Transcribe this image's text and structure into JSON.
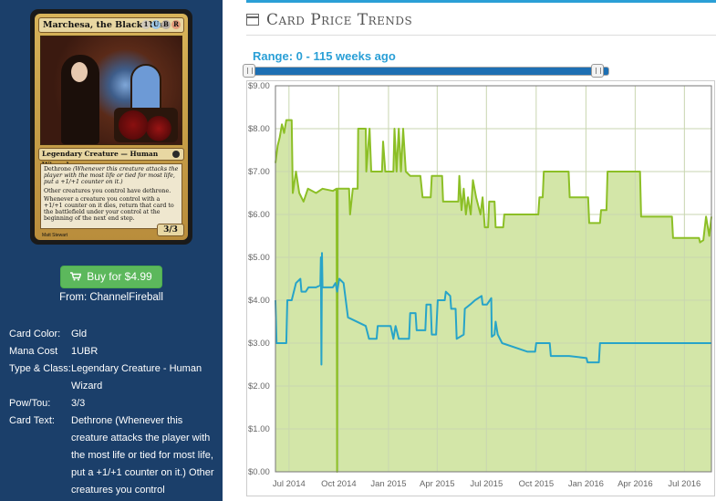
{
  "card": {
    "name": "Marchesa, the Black Rose",
    "mana_symbols": [
      "1",
      "U",
      "B",
      "R"
    ],
    "type_line": "Legendary Creature — Human Wizard",
    "rules_text_1": "Dethrone",
    "rules_text_1_reminder": "(Whenever this creature attacks the player with the most life or tied for most life, put a +1/+1 counter on it.)",
    "rules_text_2": "Other creatures you control have dethrone.",
    "rules_text_3": "Whenever a creature you control with a +1/+1 counter on it dies, return that card to the battlefield under your control at the beginning of the next end step.",
    "pt": "3/3",
    "artist": "Matt Stewart"
  },
  "buy": {
    "label": "Buy for $4.99",
    "from": "From: ChannelFireball"
  },
  "attributes": [
    {
      "key": "Card Color:",
      "value": "Gld"
    },
    {
      "key": "Mana Cost",
      "value": "1UBR"
    },
    {
      "key": "Type & Class:",
      "value": "Legendary Creature - Human Wizard"
    },
    {
      "key": "Pow/Tou:",
      "value": "3/3"
    },
    {
      "key": "Card Text:",
      "value": "Dethrone (Whenever this creature attacks the player with the most life or tied for most life, put a +1/+1 counter on it.) Other creatures you control"
    }
  ],
  "price_panel": {
    "title": "Card Price Trends",
    "range_label": "Range: 0 - 115 weeks ago"
  },
  "colors": {
    "panel_bg": "#1b3f6a",
    "accent": "#2a9fd6",
    "buy_green": "#5cb85c",
    "series_green": "#8cbf26",
    "fill_green": "#d3e6a8",
    "series_blue": "#27a4c8"
  },
  "chart_data": {
    "type": "line",
    "title": "",
    "xlabel": "",
    "ylabel": "",
    "ylim": [
      0,
      9
    ],
    "y_ticks": [
      "$0.00",
      "$1.00",
      "$2.00",
      "$3.00",
      "$4.00",
      "$5.00",
      "$6.00",
      "$7.00",
      "$8.00",
      "$9.00"
    ],
    "x_ticks": [
      {
        "date": "2014-07-01",
        "label": "Jul 2014"
      },
      {
        "date": "2014-10-01",
        "label": "Oct 2014"
      },
      {
        "date": "2015-01-01",
        "label": "Jan 2015"
      },
      {
        "date": "2015-04-01",
        "label": "Apr 2015"
      },
      {
        "date": "2015-07-01",
        "label": "Jul 2015"
      },
      {
        "date": "2015-10-01",
        "label": "Oct 2015"
      },
      {
        "date": "2016-01-01",
        "label": "Jan 2016"
      },
      {
        "date": "2016-04-01",
        "label": "Apr 2016"
      },
      {
        "date": "2016-07-01",
        "label": "Jul 2016"
      }
    ],
    "x_range": [
      "2014-06-06",
      "2016-08-20"
    ],
    "grid": true,
    "series": [
      {
        "name": "",
        "color": "#8cbf26",
        "fill": true,
        "points": [
          [
            "2014-06-06",
            7.2
          ],
          [
            "2014-06-10",
            7.6
          ],
          [
            "2014-06-14",
            7.8
          ],
          [
            "2014-06-18",
            8.1
          ],
          [
            "2014-06-22",
            7.9
          ],
          [
            "2014-06-26",
            8.2
          ],
          [
            "2014-07-06",
            8.2
          ],
          [
            "2014-07-08",
            6.5
          ],
          [
            "2014-07-14",
            7.0
          ],
          [
            "2014-07-20",
            6.5
          ],
          [
            "2014-07-28",
            6.3
          ],
          [
            "2014-08-05",
            6.6
          ],
          [
            "2014-08-20",
            6.5
          ],
          [
            "2014-09-01",
            6.6
          ],
          [
            "2014-09-20",
            6.55
          ],
          [
            "2014-09-27",
            6.6
          ],
          [
            "2014-09-28",
            0.0
          ],
          [
            "2014-09-29",
            6.6
          ],
          [
            "2014-10-20",
            6.6
          ],
          [
            "2014-10-22",
            6.0
          ],
          [
            "2014-10-27",
            6.6
          ],
          [
            "2014-11-05",
            6.6
          ],
          [
            "2014-11-06",
            8.0
          ],
          [
            "2014-11-20",
            8.0
          ],
          [
            "2014-11-21",
            7.0
          ],
          [
            "2014-11-27",
            8.0
          ],
          [
            "2014-11-30",
            7.0
          ],
          [
            "2014-12-20",
            7.0
          ],
          [
            "2014-12-22",
            7.7
          ],
          [
            "2014-12-26",
            7.0
          ],
          [
            "2015-01-10",
            7.0
          ],
          [
            "2015-01-12",
            8.0
          ],
          [
            "2015-01-16",
            7.0
          ],
          [
            "2015-01-20",
            8.0
          ],
          [
            "2015-01-24",
            7.0
          ],
          [
            "2015-01-28",
            8.0
          ],
          [
            "2015-02-02",
            7.0
          ],
          [
            "2015-02-10",
            6.9
          ],
          [
            "2015-03-01",
            6.9
          ],
          [
            "2015-03-05",
            6.4
          ],
          [
            "2015-03-20",
            6.4
          ],
          [
            "2015-03-22",
            6.9
          ],
          [
            "2015-04-10",
            6.9
          ],
          [
            "2015-04-12",
            6.3
          ],
          [
            "2015-05-10",
            6.3
          ],
          [
            "2015-05-12",
            6.9
          ],
          [
            "2015-05-16",
            6.1
          ],
          [
            "2015-05-20",
            6.6
          ],
          [
            "2015-05-24",
            6.0
          ],
          [
            "2015-05-28",
            6.4
          ],
          [
            "2015-06-02",
            6.0
          ],
          [
            "2015-06-06",
            6.8
          ],
          [
            "2015-06-12",
            6.4
          ],
          [
            "2015-06-20",
            6.0
          ],
          [
            "2015-06-24",
            6.4
          ],
          [
            "2015-06-28",
            5.7
          ],
          [
            "2015-07-04",
            5.7
          ],
          [
            "2015-07-06",
            6.3
          ],
          [
            "2015-07-16",
            6.3
          ],
          [
            "2015-07-18",
            5.7
          ],
          [
            "2015-08-01",
            5.7
          ],
          [
            "2015-08-03",
            6.0
          ],
          [
            "2015-10-05",
            6.0
          ],
          [
            "2015-10-07",
            6.4
          ],
          [
            "2015-10-13",
            6.4
          ],
          [
            "2015-10-15",
            7.0
          ],
          [
            "2015-11-30",
            7.0
          ],
          [
            "2015-12-02",
            6.4
          ],
          [
            "2016-01-05",
            6.4
          ],
          [
            "2016-01-07",
            5.8
          ],
          [
            "2016-01-27",
            5.8
          ],
          [
            "2016-01-29",
            6.1
          ],
          [
            "2016-02-08",
            6.1
          ],
          [
            "2016-02-10",
            7.0
          ],
          [
            "2016-04-10",
            7.0
          ],
          [
            "2016-04-12",
            5.95
          ],
          [
            "2016-06-08",
            5.95
          ],
          [
            "2016-06-10",
            5.45
          ],
          [
            "2016-07-28",
            5.45
          ],
          [
            "2016-07-30",
            5.35
          ],
          [
            "2016-08-05",
            5.4
          ],
          [
            "2016-08-10",
            5.95
          ],
          [
            "2016-08-16",
            5.5
          ],
          [
            "2016-08-20",
            5.95
          ]
        ]
      },
      {
        "name": "",
        "color": "#27a4c8",
        "fill": false,
        "points": [
          [
            "2014-06-06",
            4.0
          ],
          [
            "2014-06-08",
            3.0
          ],
          [
            "2014-06-26",
            3.0
          ],
          [
            "2014-06-28",
            4.0
          ],
          [
            "2014-07-06",
            4.0
          ],
          [
            "2014-07-14",
            4.4
          ],
          [
            "2014-07-22",
            4.5
          ],
          [
            "2014-07-24",
            4.2
          ],
          [
            "2014-08-01",
            4.2
          ],
          [
            "2014-08-06",
            4.3
          ],
          [
            "2014-08-20",
            4.3
          ],
          [
            "2014-08-28",
            4.35
          ],
          [
            "2014-08-29",
            5.0
          ],
          [
            "2014-08-30",
            2.5
          ],
          [
            "2014-08-31",
            5.1
          ],
          [
            "2014-09-01",
            4.3
          ],
          [
            "2014-09-20",
            4.3
          ],
          [
            "2014-09-25",
            4.4
          ],
          [
            "2014-09-28",
            4.2
          ],
          [
            "2014-10-02",
            4.5
          ],
          [
            "2014-10-10",
            4.4
          ],
          [
            "2014-10-14",
            4.0
          ],
          [
            "2014-10-18",
            3.6
          ],
          [
            "2014-11-20",
            3.4
          ],
          [
            "2014-11-26",
            3.1
          ],
          [
            "2014-12-10",
            3.1
          ],
          [
            "2014-12-12",
            3.4
          ],
          [
            "2015-01-05",
            3.4
          ],
          [
            "2015-01-10",
            3.1
          ],
          [
            "2015-01-14",
            3.4
          ],
          [
            "2015-01-20",
            3.1
          ],
          [
            "2015-02-08",
            3.1
          ],
          [
            "2015-02-10",
            3.7
          ],
          [
            "2015-02-20",
            3.7
          ],
          [
            "2015-02-22",
            3.3
          ],
          [
            "2015-03-10",
            3.3
          ],
          [
            "2015-03-12",
            3.9
          ],
          [
            "2015-03-20",
            3.9
          ],
          [
            "2015-03-22",
            3.2
          ],
          [
            "2015-03-30",
            3.2
          ],
          [
            "2015-04-02",
            4.0
          ],
          [
            "2015-04-15",
            4.0
          ],
          [
            "2015-04-17",
            4.2
          ],
          [
            "2015-04-25",
            4.1
          ],
          [
            "2015-04-27",
            3.8
          ],
          [
            "2015-05-05",
            3.8
          ],
          [
            "2015-05-07",
            3.1
          ],
          [
            "2015-05-20",
            3.2
          ],
          [
            "2015-05-22",
            3.8
          ],
          [
            "2015-06-01",
            3.9
          ],
          [
            "2015-06-10",
            4.0
          ],
          [
            "2015-06-22",
            4.1
          ],
          [
            "2015-06-24",
            3.9
          ],
          [
            "2015-07-02",
            3.9
          ],
          [
            "2015-07-10",
            4.05
          ],
          [
            "2015-07-11",
            3.15
          ],
          [
            "2015-07-16",
            3.2
          ],
          [
            "2015-07-18",
            3.5
          ],
          [
            "2015-07-22",
            3.2
          ],
          [
            "2015-07-30",
            3.0
          ],
          [
            "2015-09-15",
            2.8
          ],
          [
            "2015-09-29",
            2.8
          ],
          [
            "2015-10-01",
            3.0
          ],
          [
            "2015-10-26",
            3.0
          ],
          [
            "2015-10-28",
            2.7
          ],
          [
            "2015-12-01",
            2.7
          ],
          [
            "2016-01-02",
            2.65
          ],
          [
            "2016-01-04",
            2.55
          ],
          [
            "2016-01-25",
            2.55
          ],
          [
            "2016-01-27",
            3.0
          ],
          [
            "2016-08-20",
            3.0
          ]
        ]
      }
    ]
  }
}
